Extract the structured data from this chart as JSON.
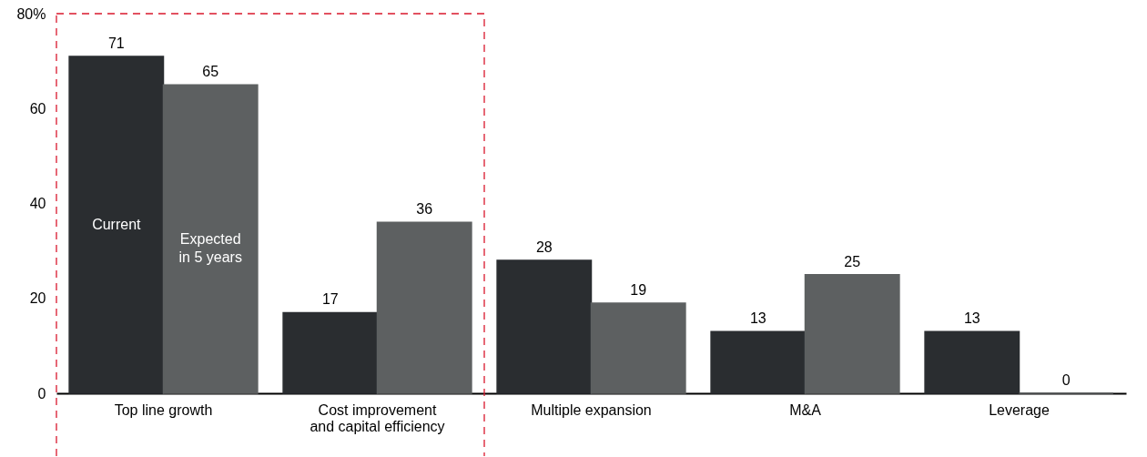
{
  "chart_data": {
    "type": "bar",
    "categories": [
      "Top line growth",
      "Cost improvement\nand capital efficiency",
      "Multiple expansion",
      "M&A",
      "Leverage"
    ],
    "series": [
      {
        "name": "Current",
        "color": "#2a2d30",
        "values": [
          71,
          17,
          28,
          13,
          13
        ]
      },
      {
        "name": "Expected\nin 5 years",
        "color": "#5d6061",
        "values": [
          65,
          36,
          19,
          25,
          0
        ]
      }
    ],
    "ylim": [
      0,
      80
    ],
    "yticks": [
      0,
      20,
      40,
      60,
      {
        "value": 80,
        "label": "80%"
      }
    ],
    "data_labels": true,
    "grid": false,
    "legend": false
  }
}
